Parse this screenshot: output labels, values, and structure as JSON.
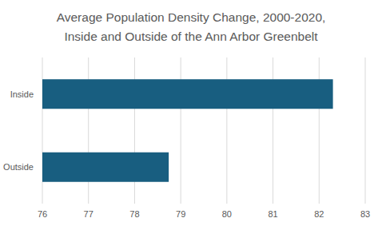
{
  "chart_data": {
    "type": "bar",
    "orientation": "horizontal",
    "title": "Average Population Density Change, 2000-2020,\nInside and Outside of the Ann Arbor Greenbelt",
    "categories": [
      "Inside",
      "Outside"
    ],
    "values": [
      82.3,
      78.74
    ],
    "color": "#185e80",
    "xlim": [
      76,
      83
    ],
    "xticks": [
      76,
      77,
      78,
      79,
      80,
      81,
      82,
      83
    ],
    "grid": true
  }
}
